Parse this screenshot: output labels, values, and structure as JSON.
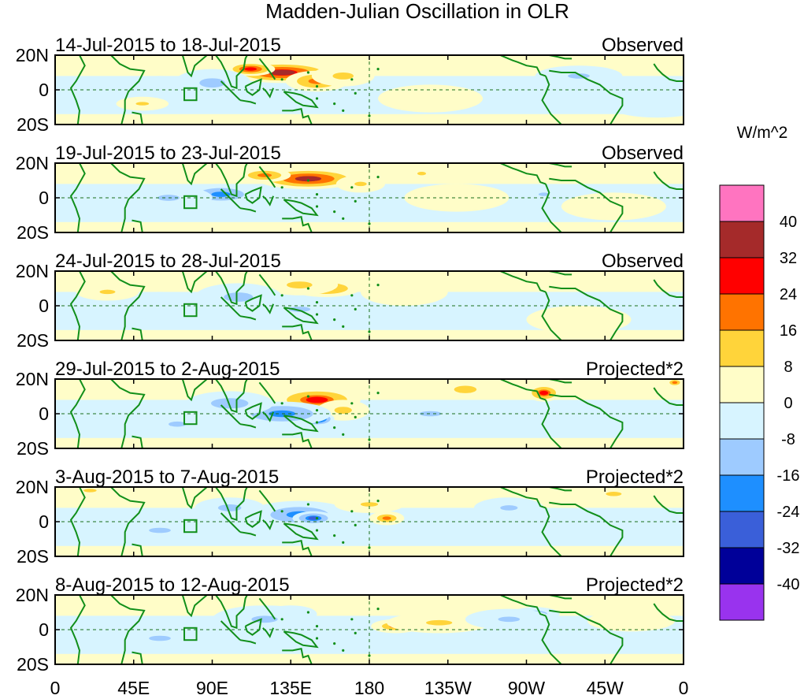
{
  "title": "Madden-Julian Oscillation in OLR",
  "colorbar": {
    "units": "W/m^2",
    "colors": [
      "#9933ee",
      "#000099",
      "#3a5fd9",
      "#1e8fff",
      "#9ecbff",
      "#d7f4ff",
      "#fffdc8",
      "#ffd43a",
      "#ff7300",
      "#ff0000",
      "#a52a2a",
      "#ff74c0"
    ],
    "tick_labels": [
      "-40",
      "-32",
      "-24",
      "-16",
      "-8",
      "0",
      "8",
      "16",
      "24",
      "32",
      "40"
    ]
  },
  "axes": {
    "lon_labels": [
      "0",
      "45E",
      "90E",
      "135E",
      "180",
      "135W",
      "90W",
      "45W",
      "0"
    ],
    "lat_labels": [
      "20N",
      "0",
      "20S"
    ]
  },
  "chart_data": {
    "type": "heatmap",
    "title": "Madden-Julian Oscillation in OLR",
    "variable": "OLR anomaly",
    "units": "W/m^2",
    "x_range_deg": [
      0,
      360
    ],
    "y_range_deg": [
      -20,
      20
    ],
    "levels": [
      -40,
      -32,
      -24,
      -16,
      -8,
      0,
      8,
      16,
      24,
      32,
      40
    ],
    "panels": [
      {
        "period": "14-Jul-2015 to 18-Jul-2015",
        "type": "Observed",
        "features": [
          {
            "lon": 130,
            "lat": 10,
            "rx": 30,
            "ry": 6,
            "v": 34
          },
          {
            "lon": 112,
            "lat": 12,
            "rx": 14,
            "ry": 4,
            "v": 30
          },
          {
            "lon": 150,
            "lat": 5,
            "rx": 18,
            "ry": 6,
            "v": 22
          },
          {
            "lon": 165,
            "lat": 8,
            "rx": 18,
            "ry": 6,
            "v": 12
          },
          {
            "lon": 90,
            "lat": 4,
            "rx": 22,
            "ry": 8,
            "v": -12
          },
          {
            "lon": 60,
            "lat": 0,
            "rx": 25,
            "ry": 8,
            "v": -6
          },
          {
            "lon": 50,
            "lat": -8,
            "rx": 15,
            "ry": 4,
            "v": 9
          },
          {
            "lon": 215,
            "lat": -5,
            "rx": 30,
            "ry": 8,
            "v": 7
          },
          {
            "lon": 300,
            "lat": 8,
            "rx": 25,
            "ry": 6,
            "v": -8
          },
          {
            "lon": 345,
            "lat": -8,
            "rx": 30,
            "ry": 8,
            "v": -6
          }
        ]
      },
      {
        "period": "19-Jul-2015 to 23-Jul-2015",
        "type": "Observed",
        "features": [
          {
            "lon": 145,
            "lat": 11,
            "rx": 30,
            "ry": 6,
            "v": 32
          },
          {
            "lon": 120,
            "lat": 13,
            "rx": 15,
            "ry": 4,
            "v": 22
          },
          {
            "lon": 175,
            "lat": 8,
            "rx": 14,
            "ry": 5,
            "v": 10
          },
          {
            "lon": 95,
            "lat": 2,
            "rx": 22,
            "ry": 6,
            "v": -20
          },
          {
            "lon": 65,
            "lat": 0,
            "rx": 25,
            "ry": 7,
            "v": -9
          },
          {
            "lon": 210,
            "lat": 14,
            "rx": 10,
            "ry": 4,
            "v": 9
          },
          {
            "lon": 230,
            "lat": 0,
            "rx": 30,
            "ry": 8,
            "v": 6
          },
          {
            "lon": 280,
            "lat": 2,
            "rx": 12,
            "ry": 4,
            "v": -10
          },
          {
            "lon": 320,
            "lat": -5,
            "rx": 30,
            "ry": 8,
            "v": 6
          }
        ]
      },
      {
        "period": "24-Jul-2015 to 28-Jul-2015",
        "type": "Observed",
        "features": [
          {
            "lon": 155,
            "lat": 10,
            "rx": 20,
            "ry": 5,
            "v": 22
          },
          {
            "lon": 140,
            "lat": 12,
            "rx": 22,
            "ry": 6,
            "v": 12
          },
          {
            "lon": 105,
            "lat": 5,
            "rx": 25,
            "ry": 8,
            "v": -12
          },
          {
            "lon": 140,
            "lat": -2,
            "rx": 25,
            "ry": 6,
            "v": -10
          },
          {
            "lon": 60,
            "lat": 0,
            "rx": 25,
            "ry": 8,
            "v": -6
          },
          {
            "lon": 30,
            "lat": 8,
            "rx": 18,
            "ry": 5,
            "v": 8
          },
          {
            "lon": 200,
            "lat": 8,
            "rx": 25,
            "ry": 8,
            "v": 6
          },
          {
            "lon": 300,
            "lat": -8,
            "rx": 30,
            "ry": 8,
            "v": 6
          }
        ]
      },
      {
        "period": "29-Jul-2015 to 2-Aug-2015",
        "type": "Projected*2",
        "features": [
          {
            "lon": 150,
            "lat": 8,
            "rx": 25,
            "ry": 7,
            "v": 26
          },
          {
            "lon": 165,
            "lat": 2,
            "rx": 15,
            "ry": 6,
            "v": 12
          },
          {
            "lon": 150,
            "lat": -3,
            "rx": 10,
            "ry": 4,
            "v": -36
          },
          {
            "lon": 130,
            "lat": 0,
            "rx": 28,
            "ry": 7,
            "v": -22
          },
          {
            "lon": 100,
            "lat": 6,
            "rx": 25,
            "ry": 7,
            "v": -14
          },
          {
            "lon": 70,
            "lat": -6,
            "rx": 20,
            "ry": 6,
            "v": -10
          },
          {
            "lon": 235,
            "lat": 14,
            "rx": 15,
            "ry": 5,
            "v": 14
          },
          {
            "lon": 280,
            "lat": 12,
            "rx": 10,
            "ry": 5,
            "v": 26
          },
          {
            "lon": 215,
            "lat": 0,
            "rx": 25,
            "ry": 6,
            "v": -8
          },
          {
            "lon": 355,
            "lat": 18,
            "rx": 6,
            "ry": 3,
            "v": 16
          }
        ]
      },
      {
        "period": "3-Aug-2015 to 7-Aug-2015",
        "type": "Projected*2",
        "features": [
          {
            "lon": 140,
            "lat": 4,
            "rx": 30,
            "ry": 8,
            "v": -18
          },
          {
            "lon": 148,
            "lat": 2,
            "rx": 12,
            "ry": 4,
            "v": -26
          },
          {
            "lon": 100,
            "lat": 8,
            "rx": 20,
            "ry": 6,
            "v": -12
          },
          {
            "lon": 190,
            "lat": 2,
            "rx": 10,
            "ry": 4,
            "v": 18
          },
          {
            "lon": 180,
            "lat": 10,
            "rx": 20,
            "ry": 5,
            "v": 9
          },
          {
            "lon": 60,
            "lat": -5,
            "rx": 25,
            "ry": 6,
            "v": -9
          },
          {
            "lon": 20,
            "lat": 18,
            "rx": 15,
            "ry": 4,
            "v": 10
          },
          {
            "lon": 260,
            "lat": 8,
            "rx": 20,
            "ry": 6,
            "v": -9
          },
          {
            "lon": 320,
            "lat": 16,
            "rx": 18,
            "ry": 5,
            "v": 10
          }
        ]
      },
      {
        "period": "8-Aug-2015 to 12-Aug-2015",
        "type": "Projected*2",
        "features": [
          {
            "lon": 195,
            "lat": 2,
            "rx": 14,
            "ry": 4,
            "v": 18
          },
          {
            "lon": 220,
            "lat": 4,
            "rx": 30,
            "ry": 6,
            "v": 9
          },
          {
            "lon": 135,
            "lat": 9,
            "rx": 15,
            "ry": 5,
            "v": -16
          },
          {
            "lon": 120,
            "lat": 6,
            "rx": 30,
            "ry": 8,
            "v": -9
          },
          {
            "lon": 275,
            "lat": 9,
            "rx": 14,
            "ry": 4,
            "v": -16
          },
          {
            "lon": 260,
            "lat": 6,
            "rx": 25,
            "ry": 6,
            "v": -9
          },
          {
            "lon": 60,
            "lat": -5,
            "rx": 25,
            "ry": 6,
            "v": -8
          },
          {
            "lon": 330,
            "lat": 5,
            "rx": 25,
            "ry": 6,
            "v": 6
          }
        ]
      }
    ]
  }
}
